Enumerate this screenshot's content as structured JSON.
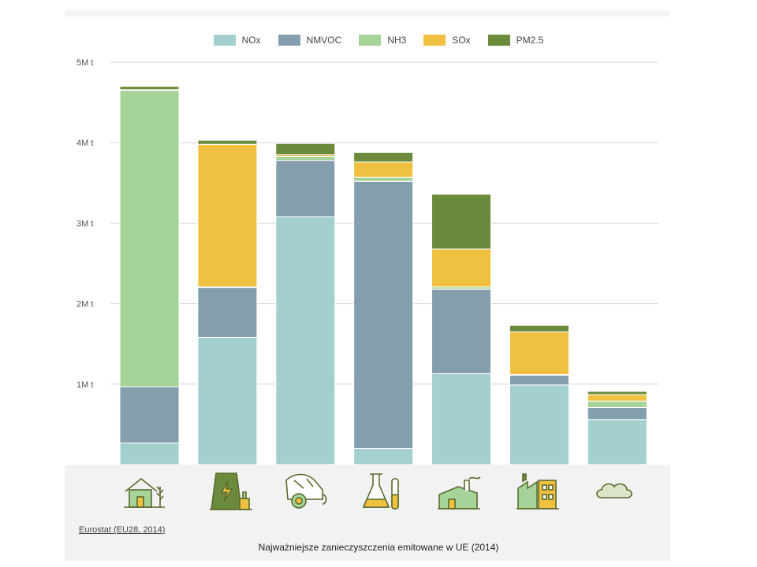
{
  "legend": [
    {
      "name": "NOx",
      "color": "#a3d0cf"
    },
    {
      "name": "NMVOC",
      "color": "#839eac"
    },
    {
      "name": "NH3",
      "color": "#a5d398"
    },
    {
      "name": "SOx",
      "color": "#f0c040"
    },
    {
      "name": "PM2.5",
      "color": "#6c8a3c"
    }
  ],
  "source": "Eurostat (EU28, 2014)",
  "caption": "Najważniejsze zanieczyszczenia emitowane w UE (2014)",
  "chart_data": {
    "type": "bar",
    "stacked": true,
    "ylim": [
      0,
      5000000
    ],
    "yticks": [
      {
        "value": 1000000,
        "label": "1M t"
      },
      {
        "value": 2000000,
        "label": "2M t"
      },
      {
        "value": 3000000,
        "label": "3M t"
      },
      {
        "value": 4000000,
        "label": "4M t"
      },
      {
        "value": 5000000,
        "label": "5M t"
      }
    ],
    "grid": true,
    "legend_position": "top-center",
    "categories": [
      "agriculture-icon",
      "power-plant-icon",
      "transport-icon",
      "chemistry-icon",
      "households-icon",
      "industry-icon",
      "other-icon"
    ],
    "series": [
      {
        "name": "NOx",
        "color": "#a3d0cf",
        "values": [
          270000,
          1580000,
          3080000,
          200000,
          1130000,
          990000,
          560000
        ]
      },
      {
        "name": "NMVOC",
        "color": "#839eac",
        "values": [
          700000,
          620000,
          700000,
          3320000,
          1050000,
          120000,
          150000
        ]
      },
      {
        "name": "NH3",
        "color": "#a5d398",
        "values": [
          3680000,
          10000,
          50000,
          50000,
          30000,
          10000,
          80000
        ]
      },
      {
        "name": "SOx",
        "color": "#f0c040",
        "values": [
          10000,
          1770000,
          20000,
          190000,
          470000,
          530000,
          80000
        ]
      },
      {
        "name": "PM2.5",
        "color": "#6c8a3c",
        "values": [
          40000,
          50000,
          140000,
          120000,
          680000,
          80000,
          40000
        ]
      }
    ]
  }
}
